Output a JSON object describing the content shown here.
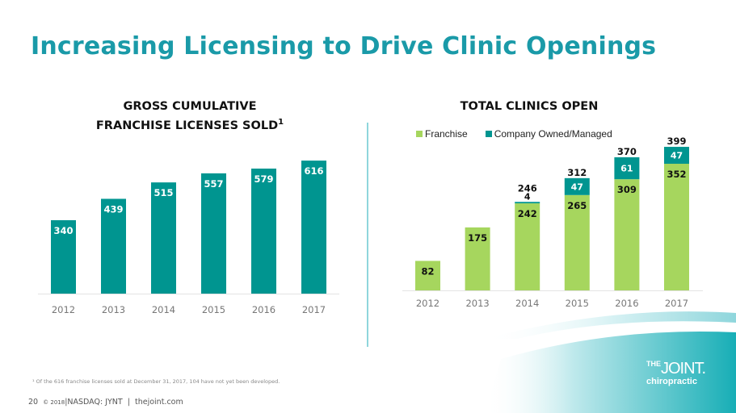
{
  "slide": {
    "title": "Increasing Licensing to Drive Clinic Openings",
    "footnote": "¹ Of the 616 franchise licenses sold at December 31, 2017, 104 have not yet been developed.",
    "page_number": "20",
    "copyright": "© 2018",
    "ticker": "NASDAQ: JYNT",
    "website": "thejoint.com",
    "logo": {
      "the": "THE",
      "joint": "JOINT.",
      "chiropractic": "chiropractic"
    }
  },
  "colors": {
    "title": "#1a9aa8",
    "licenses_bar": "#009590",
    "franchise": "#a6d65e",
    "company": "#009590",
    "divider": "#8fd6dc"
  },
  "chart_data": [
    {
      "type": "bar",
      "title_line1": "GROSS CUMULATIVE",
      "title_line2": "FRANCHISE LICENSES SOLD",
      "title_sup": "1",
      "categories": [
        "2012",
        "2013",
        "2014",
        "2015",
        "2016",
        "2017"
      ],
      "values": [
        340,
        439,
        515,
        557,
        579,
        616
      ],
      "xlabel": "",
      "ylabel": "",
      "ylim": [
        0,
        680
      ],
      "grid": false,
      "legend": "none"
    },
    {
      "type": "bar",
      "stacked": true,
      "title": "TOTAL CLINICS OPEN",
      "categories": [
        "2012",
        "2013",
        "2014",
        "2015",
        "2016",
        "2017"
      ],
      "series": [
        {
          "name": "Franchise",
          "values": [
            82,
            175,
            242,
            265,
            309,
            352
          ]
        },
        {
          "name": "Company Owned/Managed",
          "values": [
            0,
            0,
            4,
            47,
            61,
            47
          ]
        }
      ],
      "totals": [
        null,
        null,
        246,
        312,
        370,
        399
      ],
      "xlabel": "",
      "ylabel": "",
      "ylim": [
        0,
        420
      ],
      "grid": false,
      "legend": "top-left"
    }
  ]
}
